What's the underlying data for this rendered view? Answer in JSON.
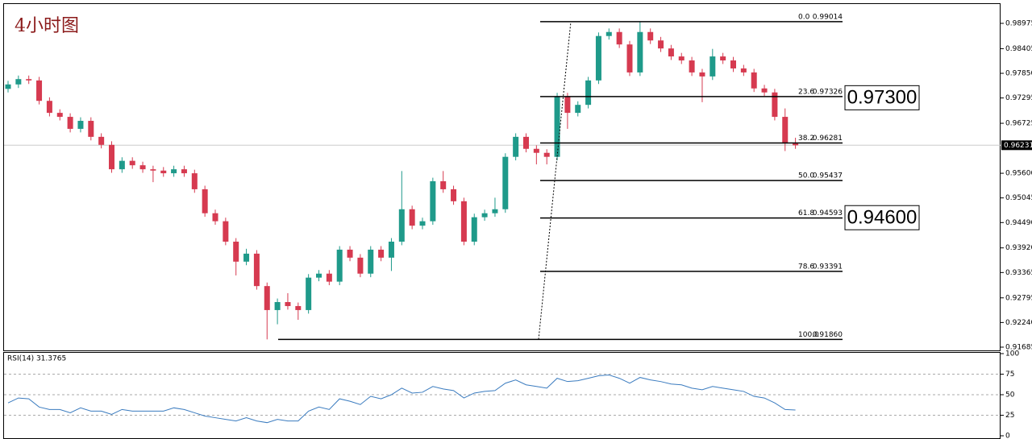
{
  "chart_data": {
    "type": "candlestick",
    "title": "4小时图",
    "up_color": "#1f9a8a",
    "down_color": "#d63a50",
    "open": [
      0.975,
      0.976,
      0.9772,
      0.9769,
      0.9723,
      0.9696,
      0.9687,
      0.966,
      0.9678,
      0.9642,
      0.9624,
      0.9569,
      0.9588,
      0.9578,
      0.9569,
      0.9566,
      0.956,
      0.9569,
      0.956,
      0.9524,
      0.947,
      0.9452,
      0.9406,
      0.9361,
      0.9379,
      0.9306,
      0.9252,
      0.927,
      0.9261,
      0.9252,
      0.9325,
      0.9334,
      0.9316,
      0.9388,
      0.937,
      0.9334,
      0.9388,
      0.937,
      0.9406,
      0.9479,
      0.9442,
      0.9452,
      0.9542,
      0.9524,
      0.9497,
      0.9406,
      0.9461,
      0.947,
      0.9479,
      0.9597,
      0.9642,
      0.9615,
      0.9606,
      0.9597,
      0.9733,
      0.9696,
      0.9714,
      0.9769,
      0.9869,
      0.9878,
      0.985,
      0.9787,
      0.9878,
      0.9859,
      0.9841,
      0.9823,
      0.9814,
      0.9787,
      0.9778,
      0.9823,
      0.9814,
      0.9796,
      0.9787,
      0.9751,
      0.9742,
      0.9687,
      0.9627
    ],
    "high": [
      0.9768,
      0.978,
      0.978,
      0.9777,
      0.9731,
      0.9704,
      0.9695,
      0.9686,
      0.9686,
      0.965,
      0.9632,
      0.9596,
      0.9596,
      0.9586,
      0.9577,
      0.9574,
      0.9577,
      0.9577,
      0.9568,
      0.9532,
      0.9478,
      0.946,
      0.9414,
      0.939,
      0.9387,
      0.9314,
      0.9278,
      0.929,
      0.9269,
      0.9333,
      0.9342,
      0.9342,
      0.9396,
      0.9396,
      0.9378,
      0.9396,
      0.9396,
      0.9414,
      0.9565,
      0.9487,
      0.946,
      0.955,
      0.9565,
      0.9532,
      0.9505,
      0.9469,
      0.9478,
      0.9505,
      0.9605,
      0.965,
      0.965,
      0.9623,
      0.9614,
      0.9741,
      0.9741,
      0.9722,
      0.9777,
      0.9877,
      0.9886,
      0.9886,
      0.9858,
      0.9901,
      0.9886,
      0.9867,
      0.9849,
      0.9831,
      0.9822,
      0.9795,
      0.984,
      0.9831,
      0.9822,
      0.9804,
      0.9795,
      0.9759,
      0.975,
      0.9706,
      0.964
    ],
    "low": [
      0.9742,
      0.9752,
      0.9761,
      0.9715,
      0.9688,
      0.9679,
      0.9652,
      0.9652,
      0.9634,
      0.9616,
      0.9561,
      0.9561,
      0.957,
      0.9561,
      0.954,
      0.9552,
      0.9552,
      0.9552,
      0.9516,
      0.9462,
      0.9444,
      0.9398,
      0.933,
      0.9353,
      0.9298,
      0.9186,
      0.922,
      0.9253,
      0.923,
      0.9244,
      0.9317,
      0.9308,
      0.9308,
      0.9362,
      0.9326,
      0.9326,
      0.9362,
      0.934,
      0.9398,
      0.9434,
      0.9434,
      0.9444,
      0.9516,
      0.9489,
      0.9398,
      0.9398,
      0.9453,
      0.9462,
      0.9471,
      0.9589,
      0.9607,
      0.958,
      0.958,
      0.9589,
      0.966,
      0.9688,
      0.9706,
      0.9761,
      0.9861,
      0.9842,
      0.9779,
      0.9779,
      0.9851,
      0.9833,
      0.9815,
      0.9806,
      0.9779,
      0.972,
      0.977,
      0.9806,
      0.9788,
      0.9779,
      0.9743,
      0.9734,
      0.9679,
      0.961,
      0.9615
    ],
    "close": [
      0.976,
      0.9772,
      0.9769,
      0.9723,
      0.9696,
      0.9687,
      0.966,
      0.9678,
      0.9642,
      0.9624,
      0.9569,
      0.9588,
      0.9578,
      0.9569,
      0.9566,
      0.956,
      0.9569,
      0.956,
      0.9524,
      0.947,
      0.9452,
      0.9406,
      0.9361,
      0.9379,
      0.9306,
      0.9252,
      0.927,
      0.9261,
      0.9252,
      0.9325,
      0.9334,
      0.9316,
      0.9388,
      0.937,
      0.9334,
      0.9388,
      0.937,
      0.9406,
      0.9479,
      0.9442,
      0.9452,
      0.9542,
      0.9524,
      0.9497,
      0.9406,
      0.9461,
      0.947,
      0.9479,
      0.9597,
      0.9642,
      0.9615,
      0.9606,
      0.9597,
      0.9733,
      0.9696,
      0.9714,
      0.9769,
      0.9869,
      0.9878,
      0.985,
      0.9787,
      0.9878,
      0.9859,
      0.9841,
      0.9823,
      0.9814,
      0.9787,
      0.9778,
      0.9823,
      0.9814,
      0.9796,
      0.9787,
      0.9751,
      0.9742,
      0.9687,
      0.9627,
      0.9623
    ],
    "ylim": [
      0.91612,
      0.9941
    ],
    "yticks": [
      0.98975,
      0.98405,
      {
        "value": 0.9785,
        "label": "0.97850"
      },
      0.97295,
      0.96725,
      {
        "value": 0.956,
        "label": "0.95600"
      },
      0.95045,
      {
        "value": 0.9449,
        "label": "0.94490"
      },
      {
        "value": 0.9392,
        "label": "0.93920"
      },
      0.93365,
      0.92795,
      {
        "value": 0.9224,
        "label": "0.92240"
      },
      0.91685
    ],
    "current_price": 0.96231,
    "fib_levels": [
      {
        "level": "0.0",
        "price": 0.99014
      },
      {
        "level": "23.6",
        "price": 0.97326
      },
      {
        "level": "38.2",
        "price": 0.96281
      },
      {
        "level": "50.0",
        "price": 0.95437
      },
      {
        "level": "61.8",
        "price": 0.94593
      },
      {
        "level": "78.6",
        "price": 0.93391
      },
      {
        "level": "100.0",
        "price": {
          "value": 0.9186,
          "label": "0.91860"
        }
      }
    ],
    "annotations": [
      {
        "value": 0.973,
        "label": "0.97300"
      },
      {
        "value": 0.946,
        "label": "0.94600"
      }
    ],
    "rsi": {
      "title": "RSI(14) 31.3765",
      "color": "#3a7bbf",
      "values": [
        40,
        46,
        45,
        35,
        32,
        32,
        28,
        34,
        30,
        30,
        26,
        32,
        30,
        30,
        30,
        30,
        34,
        32,
        28,
        24,
        22,
        20,
        18,
        22,
        18,
        16,
        20,
        18,
        18,
        30,
        35,
        32,
        45,
        42,
        38,
        48,
        45,
        50,
        58,
        52,
        53,
        60,
        57,
        55,
        46,
        52,
        54,
        55,
        64,
        68,
        62,
        60,
        58,
        70,
        66,
        67,
        70,
        73,
        74,
        70,
        64,
        71,
        68,
        66,
        63,
        62,
        58,
        56,
        60,
        58,
        56,
        54,
        48,
        46,
        40,
        32,
        31.3765
      ],
      "ylim": [
        0,
        100
      ],
      "yticks": [
        100,
        75,
        50,
        25,
        0
      ],
      "levels": [
        75,
        50,
        25
      ]
    }
  }
}
